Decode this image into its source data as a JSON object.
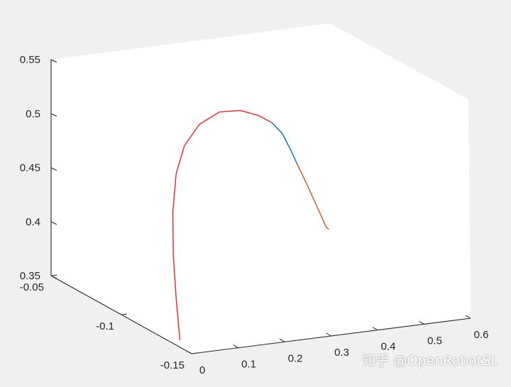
{
  "chart_data": {
    "type": "line",
    "projection": "3d",
    "title": "",
    "xlabel": "",
    "ylabel": "",
    "zlabel": "",
    "grid": false,
    "xlim": [
      0,
      0.6
    ],
    "ylim": [
      -0.15,
      -0.05
    ],
    "zlim": [
      0.35,
      0.55
    ],
    "x_ticks": [
      {
        "value": 0,
        "label": "0"
      },
      {
        "value": 0.1,
        "label": "0.1"
      },
      {
        "value": 0.2,
        "label": "0.2"
      },
      {
        "value": 0.3,
        "label": "0.3"
      },
      {
        "value": 0.4,
        "label": "0.4"
      },
      {
        "value": 0.5,
        "label": "0.5"
      },
      {
        "value": 0.6,
        "label": "0.6"
      }
    ],
    "y_ticks": [
      {
        "value": -0.15,
        "label": "-0.15"
      },
      {
        "value": -0.1,
        "label": "-0.1"
      },
      {
        "value": -0.05,
        "label": "-0.05"
      }
    ],
    "z_ticks": [
      {
        "value": 0.35,
        "label": "0.35"
      },
      {
        "value": 0.4,
        "label": "0.4"
      },
      {
        "value": 0.45,
        "label": "0.45"
      },
      {
        "value": 0.5,
        "label": "0.5"
      },
      {
        "value": 0.55,
        "label": "0.55"
      }
    ],
    "series": [
      {
        "color": "#ff2020",
        "points": [
          [
            0.02,
            -0.135,
            0.351
          ],
          [
            0.012,
            -0.135,
            0.39
          ],
          [
            0.006,
            -0.135,
            0.43
          ],
          [
            0.005,
            -0.135,
            0.47
          ],
          [
            0.012,
            -0.135,
            0.505
          ],
          [
            0.03,
            -0.135,
            0.53
          ],
          [
            0.062,
            -0.135,
            0.548
          ],
          [
            0.105,
            -0.135,
            0.557
          ],
          [
            0.15,
            -0.135,
            0.556
          ],
          [
            0.19,
            -0.135,
            0.549
          ],
          [
            0.218,
            -0.135,
            0.541
          ]
        ]
      },
      {
        "color": "#0072bd",
        "points": [
          [
            0.218,
            -0.135,
            0.541
          ],
          [
            0.24,
            -0.135,
            0.53
          ],
          [
            0.258,
            -0.135,
            0.514
          ],
          [
            0.272,
            -0.135,
            0.5
          ]
        ]
      },
      {
        "color": "#d95319",
        "points": [
          [
            0.272,
            -0.135,
            0.5
          ],
          [
            0.29,
            -0.135,
            0.483
          ],
          [
            0.31,
            -0.135,
            0.463
          ],
          [
            0.325,
            -0.135,
            0.448
          ],
          [
            0.335,
            -0.135,
            0.438
          ],
          [
            0.34,
            -0.135,
            0.436
          ]
        ]
      }
    ]
  },
  "watermark": "知乎 @OpenRobotSL"
}
